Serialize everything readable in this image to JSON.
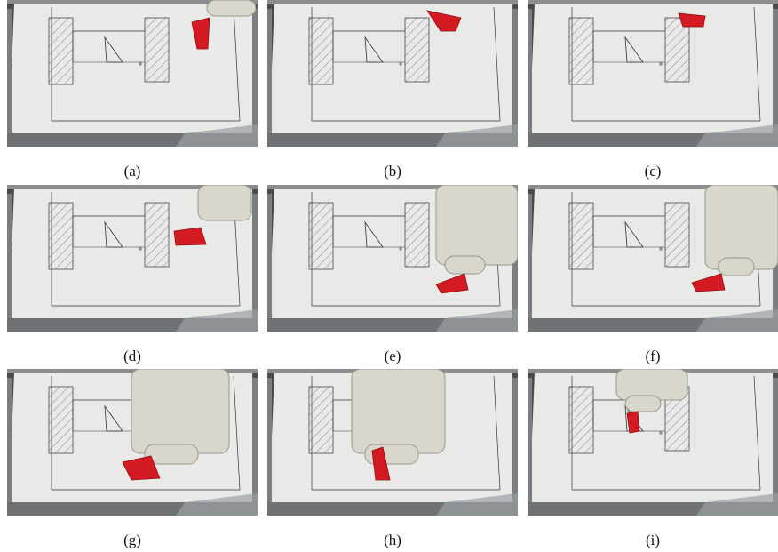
{
  "panels": [
    {
      "caption": "(a)"
    },
    {
      "caption": "(b)"
    },
    {
      "caption": "(c)"
    },
    {
      "caption": "(d)"
    },
    {
      "caption": "(e)"
    },
    {
      "caption": "(f)"
    },
    {
      "caption": "(g)"
    },
    {
      "caption": "(h)"
    },
    {
      "caption": "(i)"
    }
  ]
}
